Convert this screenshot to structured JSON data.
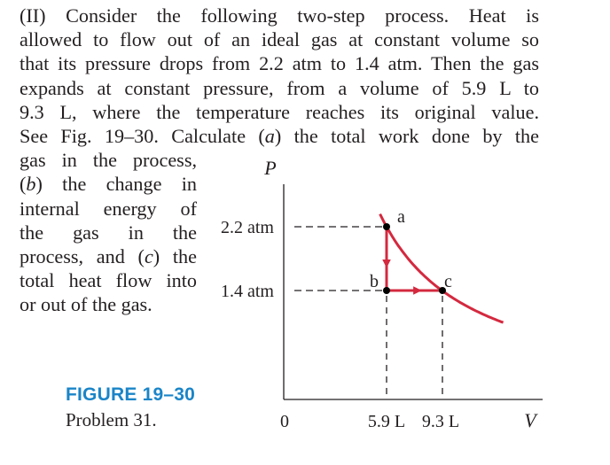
{
  "problem": {
    "lines": [
      {
        "pre": "(II) Consider the following two-step process. Heat is"
      },
      {
        "pre": "allowed to flow out of an ideal gas at constant volume so"
      },
      {
        "pre": "that its pressure drops from 2.2 atm to 1.4 atm. Then the gas"
      },
      {
        "pre": "expands at constant pressure, from a volume of 5.9 L to"
      },
      {
        "pre": "9.3 L, where the temperature reaches its original value."
      },
      {
        "pre": "See Fig. 19–30. Calculate (",
        "it": "a",
        "post": ") the total work done by the"
      },
      {
        "pre": "gas in the process,"
      },
      {
        "pre": "(",
        "it": "b",
        "post": ") the change in"
      },
      {
        "pre": "internal energy of"
      },
      {
        "pre": "the gas in the"
      },
      {
        "pre": "process, and (",
        "it": "c",
        "post": ") the"
      },
      {
        "pre": "total heat flow into"
      },
      {
        "pre": "or out of the gas."
      }
    ]
  },
  "figure": {
    "title": "FIGURE 19–30",
    "caption": "Problem 31.",
    "axis": {
      "y_label": "P",
      "x_label": "V",
      "origin": "0"
    },
    "pressure_ticks": [
      {
        "label": "2.2 atm",
        "value": 2.2
      },
      {
        "label": "1.4 atm",
        "value": 1.4
      }
    ],
    "volume_ticks": [
      {
        "label": "5.9 L",
        "value": 5.9
      },
      {
        "label": "9.3 L",
        "value": 9.3
      }
    ],
    "points": [
      {
        "label": "a",
        "V": 5.9,
        "P": 2.2
      },
      {
        "label": "b",
        "V": 5.9,
        "P": 1.4
      },
      {
        "label": "c",
        "V": 9.3,
        "P": 1.4
      }
    ],
    "curve_color": "#d4293f"
  }
}
